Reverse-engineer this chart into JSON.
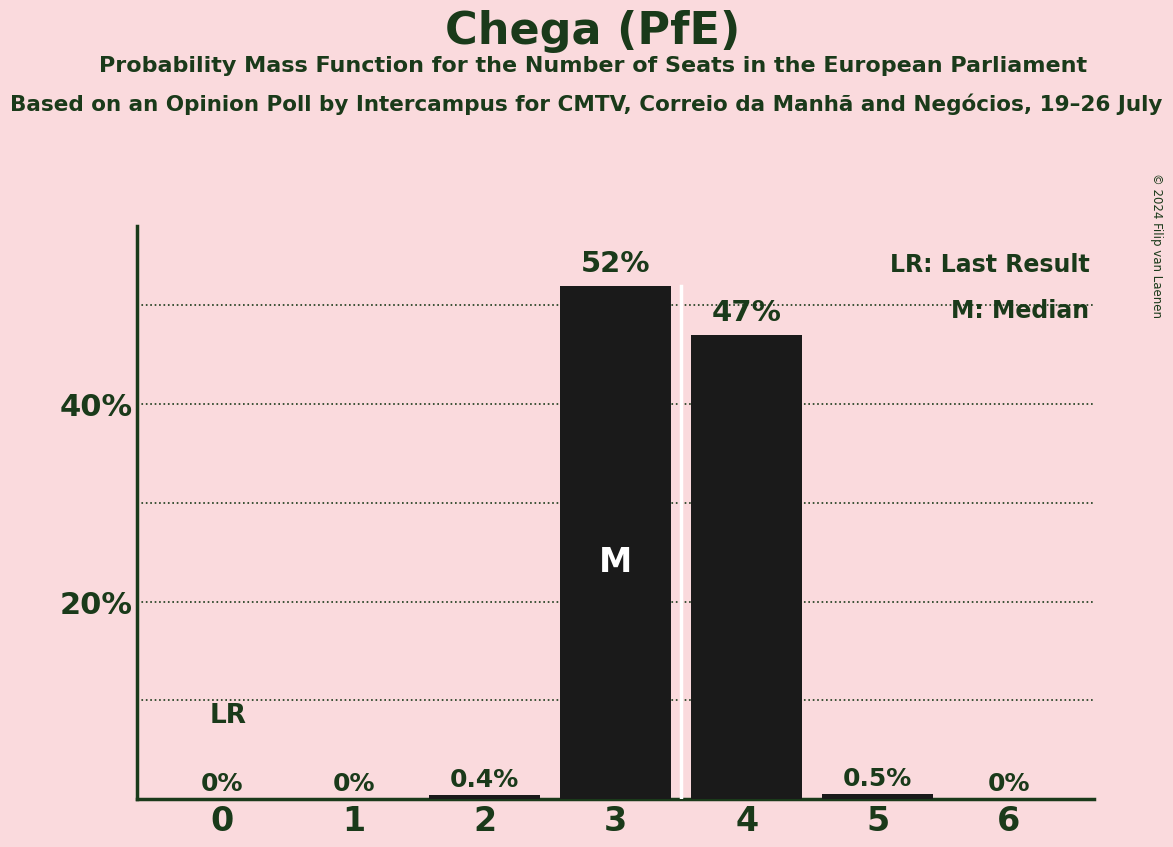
{
  "title": "Chega (PfE)",
  "subtitle1": "Probability Mass Function for the Number of Seats in the European Parliament",
  "subtitle2": "Based on an Opinion Poll by Intercampus for CMTV, Correio da Manhã and Negócios, 19–26 July",
  "copyright": "© 2024 Filip van Laenen",
  "categories": [
    0,
    1,
    2,
    3,
    4,
    5,
    6
  ],
  "values": [
    0.0,
    0.0,
    0.004,
    0.52,
    0.47,
    0.005,
    0.0
  ],
  "bar_labels": [
    "0%",
    "0%",
    "0.4%",
    "52%",
    "47%",
    "0.5%",
    "0%"
  ],
  "bar_color": "#1a1a1a",
  "background_color": "#fadadd",
  "text_color": "#1a3a1a",
  "median_bar": 3,
  "median_label": "M",
  "lr_label": "LR",
  "legend_lr": "LR: Last Result",
  "legend_m": "M: Median",
  "ylim": [
    0,
    0.58
  ],
  "dotted_lines": [
    0.1,
    0.2,
    0.3,
    0.4,
    0.5
  ]
}
